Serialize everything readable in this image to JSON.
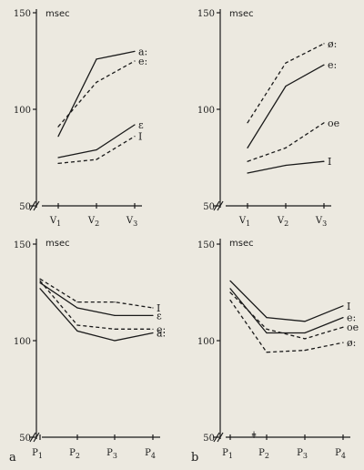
{
  "figure": {
    "panel_letters": [
      "a",
      "b"
    ],
    "marker_glyph": "ǂ"
  },
  "chart_data": [
    {
      "type": "line",
      "ylabel": "msec",
      "yticks": [
        50,
        100,
        150
      ],
      "ylim": [
        50,
        150
      ],
      "categories": [
        "V1",
        "V2",
        "V3"
      ],
      "series": [
        {
          "name": "a:",
          "style": "solid",
          "values": [
            86,
            126,
            130
          ]
        },
        {
          "name": "e:",
          "style": "dashed",
          "values": [
            91,
            114,
            125
          ]
        },
        {
          "name": "ɛ",
          "style": "solid",
          "values": [
            75,
            79,
            92
          ]
        },
        {
          "name": "I",
          "style": "dashed",
          "values": [
            72,
            74,
            86
          ]
        }
      ]
    },
    {
      "type": "line",
      "ylabel": "msec",
      "yticks": [
        50,
        100,
        150
      ],
      "ylim": [
        50,
        150
      ],
      "categories": [
        "V1",
        "V2",
        "V3"
      ],
      "series": [
        {
          "name": "ø:",
          "style": "dashed",
          "values": [
            93,
            124,
            134
          ]
        },
        {
          "name": "e:",
          "style": "solid",
          "values": [
            80,
            112,
            123
          ]
        },
        {
          "name": "oe",
          "style": "dashed",
          "values": [
            73,
            80,
            93
          ]
        },
        {
          "name": "I",
          "style": "solid",
          "values": [
            67,
            71,
            73
          ]
        }
      ]
    },
    {
      "type": "line",
      "ylabel": "msec",
      "yticks": [
        50,
        100,
        150
      ],
      "ylim": [
        50,
        150
      ],
      "categories": [
        "P1",
        "P2",
        "P3",
        "P4"
      ],
      "series": [
        {
          "name": "I",
          "style": "dashed",
          "values": [
            132,
            120,
            120,
            117
          ]
        },
        {
          "name": "ɛ",
          "style": "solid",
          "values": [
            130,
            117,
            113,
            113
          ]
        },
        {
          "name": "e:",
          "style": "dashed",
          "values": [
            131,
            108,
            106,
            106
          ]
        },
        {
          "name": "a:",
          "style": "solid",
          "values": [
            127,
            105,
            100,
            104
          ]
        }
      ]
    },
    {
      "type": "line",
      "ylabel": "msec",
      "yticks": [
        50,
        100,
        150
      ],
      "ylim": [
        50,
        150
      ],
      "categories": [
        "P1",
        "P2",
        "P3",
        "P4"
      ],
      "series": [
        {
          "name": "I",
          "style": "solid",
          "values": [
            131,
            112,
            110,
            118
          ]
        },
        {
          "name": "e:",
          "style": "solid",
          "values": [
            127,
            104,
            104,
            112
          ]
        },
        {
          "name": "oe",
          "style": "dashed",
          "values": [
            125,
            106,
            101,
            107
          ]
        },
        {
          "name": "ø:",
          "style": "dashed",
          "values": [
            121,
            94,
            95,
            99
          ]
        }
      ]
    }
  ]
}
